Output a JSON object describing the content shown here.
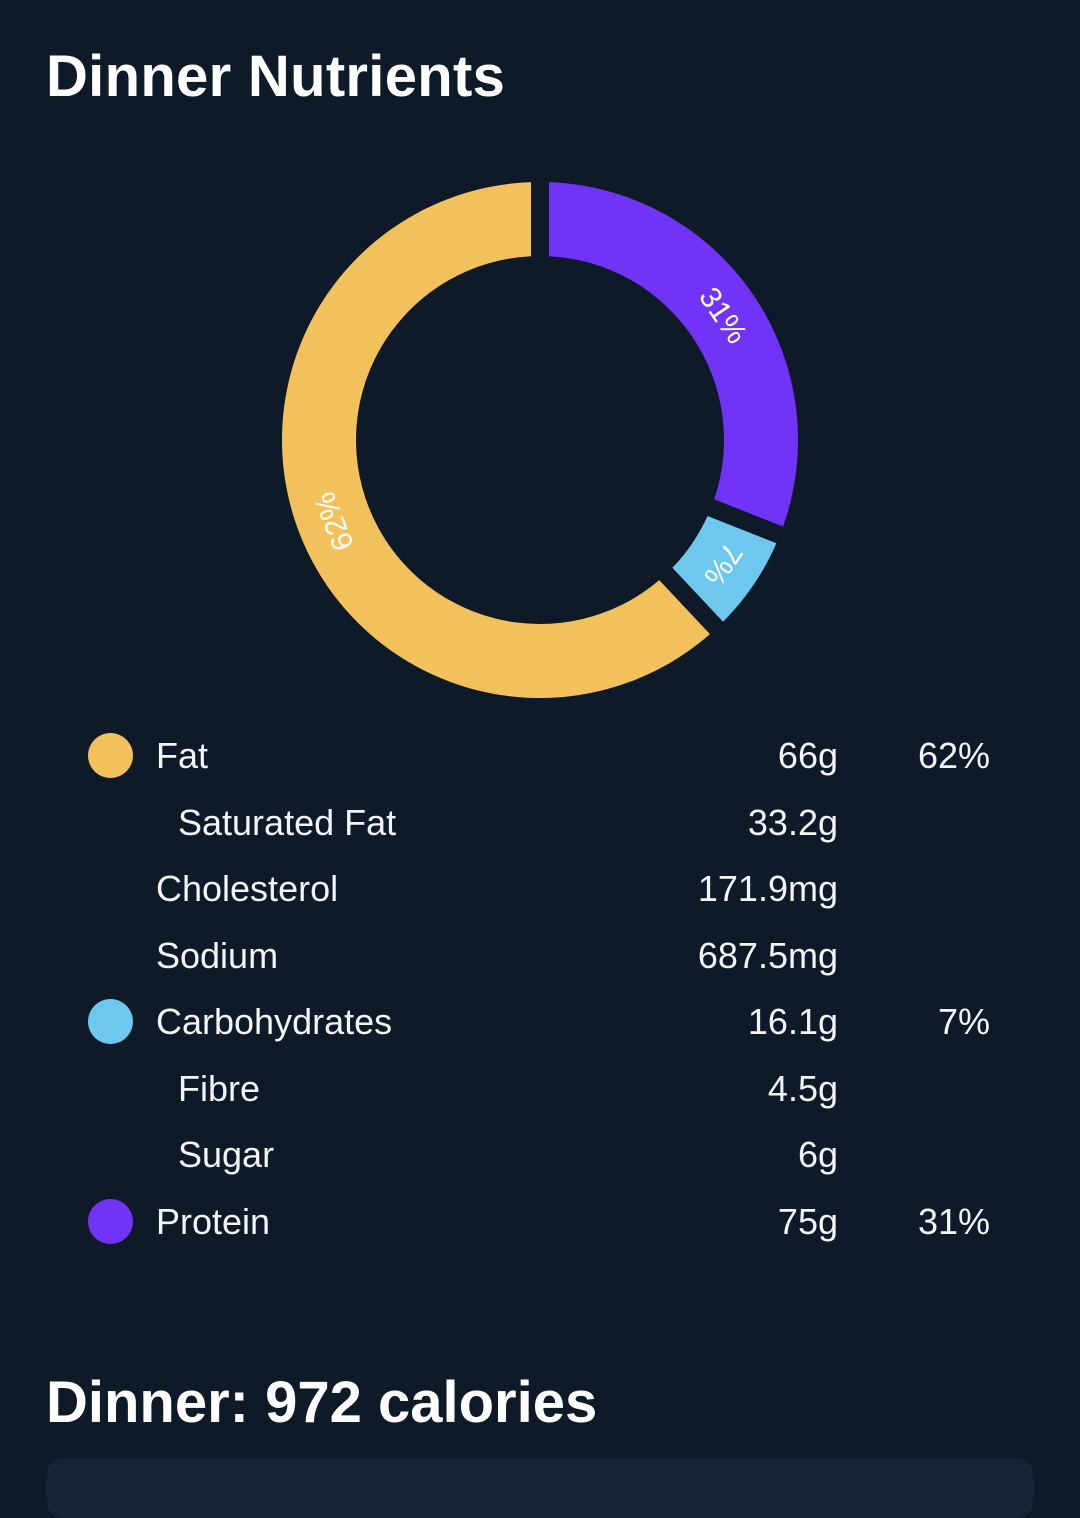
{
  "header": {
    "title": "Dinner Nutrients"
  },
  "chart_data": {
    "type": "pie",
    "categories": [
      "Fat",
      "Carbohydrates",
      "Protein"
    ],
    "values": [
      62,
      7,
      31
    ],
    "labels": [
      "62%",
      "7%",
      "31%"
    ],
    "colors": [
      "#f3c15c",
      "#6ec7ec",
      "#7133f5"
    ]
  },
  "nutrients": [
    {
      "label": "Fat",
      "amount": "66g",
      "percent": "62%",
      "color": "#f3c15c",
      "sub": false
    },
    {
      "label": "Saturated Fat",
      "amount": "33.2g",
      "percent": "",
      "color": "",
      "sub": true
    },
    {
      "label": "Cholesterol",
      "amount": "171.9mg",
      "percent": "",
      "color": "",
      "sub": false
    },
    {
      "label": "Sodium",
      "amount": "687.5mg",
      "percent": "",
      "color": "",
      "sub": false
    },
    {
      "label": "Carbohydrates",
      "amount": "16.1g",
      "percent": "7%",
      "color": "#6ec7ec",
      "sub": false
    },
    {
      "label": "Fibre",
      "amount": "4.5g",
      "percent": "",
      "color": "",
      "sub": true
    },
    {
      "label": "Sugar",
      "amount": "6g",
      "percent": "",
      "color": "",
      "sub": true
    },
    {
      "label": "Protein",
      "amount": "75g",
      "percent": "31%",
      "color": "#7133f5",
      "sub": false
    }
  ],
  "footer": {
    "title": "Dinner: 972 calories"
  }
}
